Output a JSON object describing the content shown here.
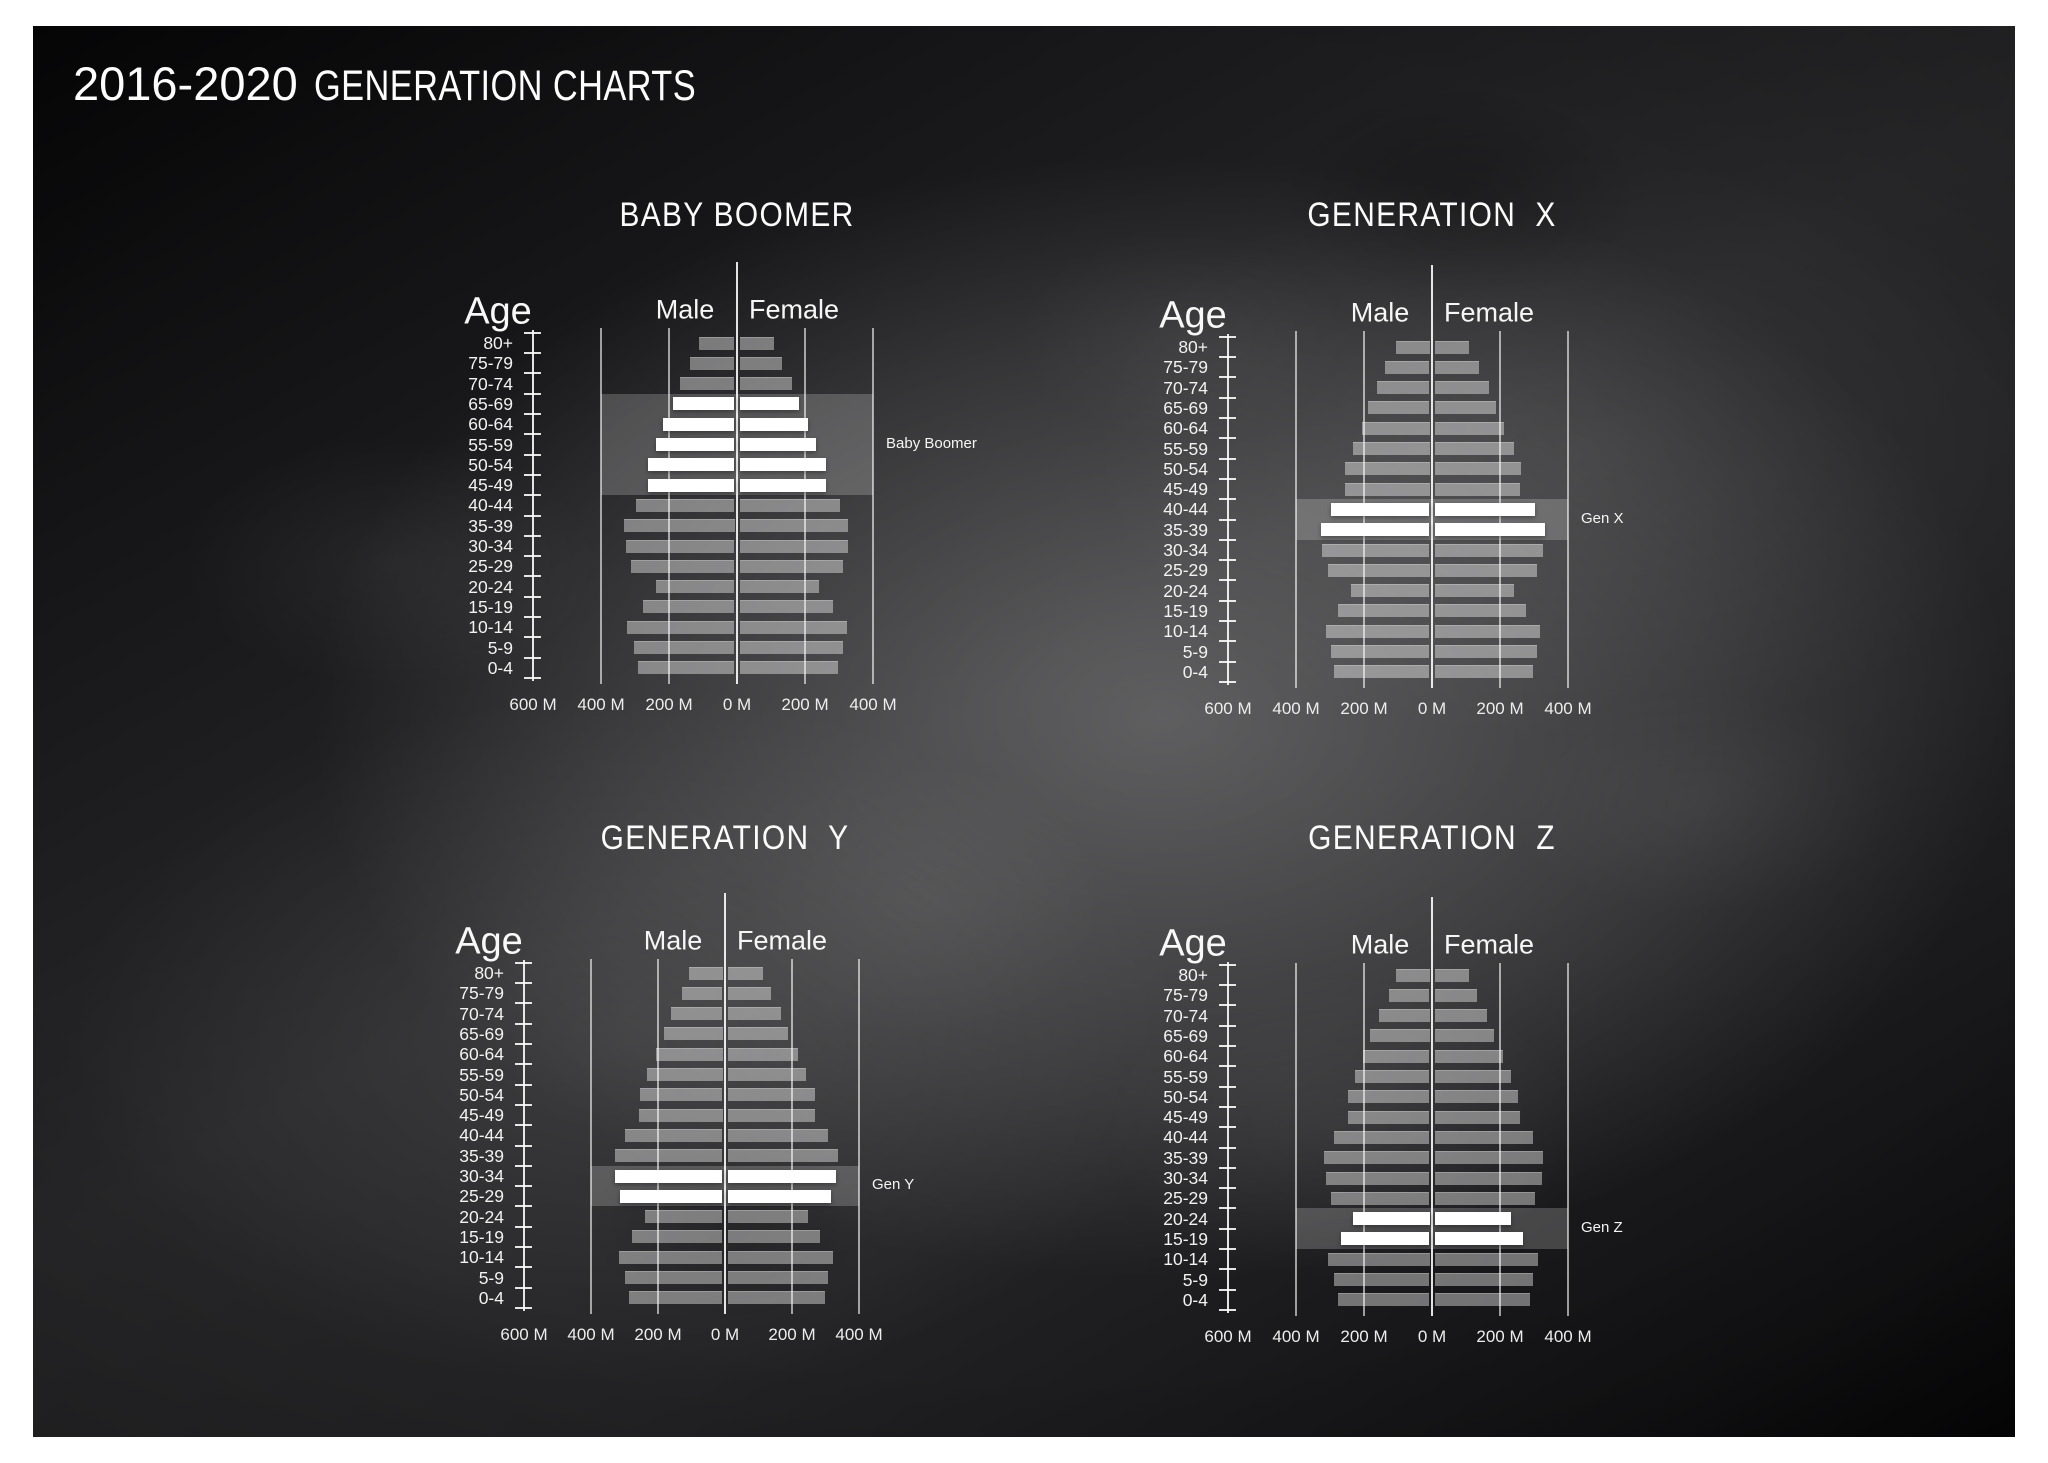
{
  "page_title": {
    "years": "2016-2020",
    "text": "GENERATION CHARTS"
  },
  "chart_data": [
    {
      "type": "bar",
      "variant": "population-pyramid",
      "id": "baby-boomer",
      "title": "BABY BOOMER",
      "age_axis_label": "Age",
      "male_label": "Male",
      "female_label": "Female",
      "x_unit": "millions of people",
      "x_tick_labels": [
        "600 M",
        "400 M",
        "200 M",
        "0 M",
        "200 M",
        "400 M"
      ],
      "x_max": 400,
      "grid": true,
      "categories": [
        "80+",
        "75-79",
        "70-74",
        "65-69",
        "60-64",
        "55-59",
        "50-54",
        "45-49",
        "40-44",
        "35-39",
        "30-34",
        "25-29",
        "20-24",
        "15-19",
        "10-14",
        "5-9",
        "0-4"
      ],
      "series": [
        {
          "name": "Male",
          "values": [
            105,
            130,
            160,
            180,
            210,
            230,
            255,
            255,
            290,
            325,
            320,
            305,
            230,
            270,
            315,
            295,
            285
          ]
        },
        {
          "name": "Female",
          "values": [
            100,
            125,
            155,
            175,
            200,
            225,
            255,
            255,
            295,
            320,
            320,
            305,
            235,
            275,
            315,
            305,
            290
          ]
        }
      ],
      "highlight": {
        "label": "Baby Boomer",
        "from": "65-69",
        "to": "45-49"
      }
    },
    {
      "type": "bar",
      "variant": "population-pyramid",
      "id": "generation-x",
      "title": "GENERATION  X",
      "age_axis_label": "Age",
      "male_label": "Male",
      "female_label": "Female",
      "x_unit": "millions of people",
      "x_tick_labels": [
        "600 M",
        "400 M",
        "200 M",
        "0 M",
        "200 M",
        "400 M"
      ],
      "x_max": 400,
      "grid": true,
      "categories": [
        "80+",
        "75-79",
        "70-74",
        "65-69",
        "60-64",
        "55-59",
        "50-54",
        "45-49",
        "40-44",
        "35-39",
        "30-34",
        "25-29",
        "20-24",
        "15-19",
        "10-14",
        "5-9",
        "0-4"
      ],
      "series": [
        {
          "name": "Male",
          "values": [
            100,
            130,
            155,
            180,
            200,
            225,
            250,
            250,
            290,
            320,
            315,
            300,
            230,
            270,
            305,
            290,
            280
          ]
        },
        {
          "name": "Female",
          "values": [
            100,
            130,
            160,
            180,
            205,
            235,
            255,
            250,
            295,
            325,
            320,
            300,
            235,
            270,
            310,
            300,
            290
          ]
        }
      ],
      "highlight": {
        "label": "Gen X",
        "from": "40-44",
        "to": "35-39"
      }
    },
    {
      "type": "bar",
      "variant": "population-pyramid",
      "id": "generation-y",
      "title": "GENERATION  Y",
      "age_axis_label": "Age",
      "male_label": "Male",
      "female_label": "Female",
      "x_unit": "millions of people",
      "x_tick_labels": [
        "600 M",
        "400 M",
        "200 M",
        "0 M",
        "200 M",
        "400 M"
      ],
      "x_max": 400,
      "grid": true,
      "categories": [
        "80+",
        "75-79",
        "70-74",
        "65-69",
        "60-64",
        "55-59",
        "50-54",
        "45-49",
        "40-44",
        "35-39",
        "30-34",
        "25-29",
        "20-24",
        "15-19",
        "10-14",
        "5-9",
        "0-4"
      ],
      "series": [
        {
          "name": "Male",
          "values": [
            100,
            120,
            155,
            175,
            200,
            225,
            245,
            250,
            290,
            320,
            320,
            305,
            230,
            270,
            310,
            290,
            280
          ]
        },
        {
          "name": "Female",
          "values": [
            105,
            130,
            160,
            180,
            210,
            235,
            260,
            260,
            300,
            330,
            325,
            310,
            240,
            275,
            315,
            300,
            290
          ]
        }
      ],
      "highlight": {
        "label": "Gen Y",
        "from": "30-34",
        "to": "25-29"
      }
    },
    {
      "type": "bar",
      "variant": "population-pyramid",
      "id": "generation-z",
      "title": "GENERATION  Z",
      "age_axis_label": "Age",
      "male_label": "Male",
      "female_label": "Female",
      "x_unit": "millions of people",
      "x_tick_labels": [
        "600 M",
        "400 M",
        "200 M",
        "0 M",
        "200 M",
        "400 M"
      ],
      "x_max": 400,
      "grid": true,
      "categories": [
        "80+",
        "75-79",
        "70-74",
        "65-69",
        "60-64",
        "55-59",
        "50-54",
        "45-49",
        "40-44",
        "35-39",
        "30-34",
        "25-29",
        "20-24",
        "15-19",
        "10-14",
        "5-9",
        "0-4"
      ],
      "series": [
        {
          "name": "Male",
          "values": [
            100,
            120,
            150,
            175,
            195,
            220,
            240,
            240,
            280,
            310,
            305,
            290,
            225,
            260,
            300,
            280,
            270
          ]
        },
        {
          "name": "Female",
          "values": [
            100,
            125,
            155,
            175,
            200,
            225,
            245,
            250,
            290,
            320,
            315,
            295,
            225,
            260,
            305,
            290,
            280
          ]
        }
      ],
      "highlight": {
        "label": "Gen Z",
        "from": "20-24",
        "to": "15-19"
      }
    }
  ],
  "colors": {
    "board_dark": "#0a0a0c",
    "board_mid": "#4a4a4c",
    "bar_gray": "rgba(255,255,255,0.40)",
    "bar_highlight": "#ffffff",
    "band": "rgba(255,255,255,0.20)",
    "text": "#ffffff",
    "frame": "#ffffff"
  }
}
